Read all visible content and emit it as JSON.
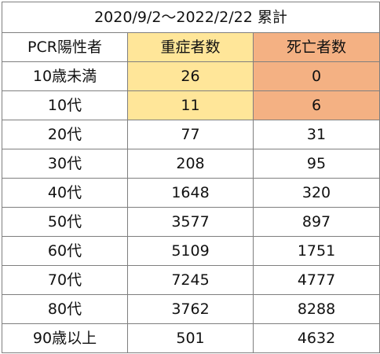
{
  "table": {
    "title": "2020/9/2～2022/2/22 累計",
    "header": {
      "category": "PCR陽性者",
      "severe": "重症者数",
      "deaths": "死亡者数"
    },
    "rows": [
      {
        "category": "10歳未満",
        "severe": "26",
        "deaths": "0"
      },
      {
        "category": "10代",
        "severe": "11",
        "deaths": "6"
      },
      {
        "category": "20代",
        "severe": "77",
        "deaths": "31"
      },
      {
        "category": "30代",
        "severe": "208",
        "deaths": "95"
      },
      {
        "category": "40代",
        "severe": "1648",
        "deaths": "320"
      },
      {
        "category": "50代",
        "severe": "3577",
        "deaths": "897"
      },
      {
        "category": "60代",
        "severe": "5109",
        "deaths": "1751"
      },
      {
        "category": "70代",
        "severe": "7245",
        "deaths": "4777"
      },
      {
        "category": "80代",
        "severe": "3762",
        "deaths": "8288"
      },
      {
        "category": "90歳以上",
        "severe": "501",
        "deaths": "4632"
      }
    ]
  },
  "colors": {
    "severe_highlight": "#ffe699",
    "deaths_highlight": "#f4b183",
    "grid": "#7f7f7f"
  }
}
